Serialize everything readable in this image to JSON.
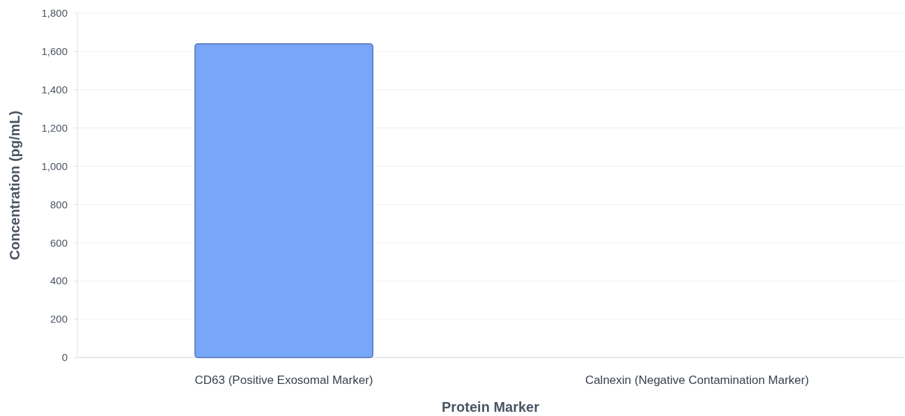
{
  "chart_data": {
    "type": "bar",
    "xlabel": "Protein Marker",
    "ylabel": "Concentration (pg/mL)",
    "categories": [
      "CD63 (Positive Exosomal Marker)",
      "Calnexin (Negative Contamination Marker)"
    ],
    "values": [
      1640,
      0
    ],
    "color": "#78a6f8",
    "ylim": [
      0,
      1800
    ],
    "yticks": [
      0,
      200,
      400,
      600,
      800,
      {
        "value": 1000,
        "label": "1,000"
      },
      {
        "value": 1200,
        "label": "1,200"
      },
      {
        "value": 1400,
        "label": "1,400"
      },
      {
        "value": 1600,
        "label": "1,600"
      },
      {
        "value": 1800,
        "label": "1,800"
      }
    ],
    "grid": true
  }
}
